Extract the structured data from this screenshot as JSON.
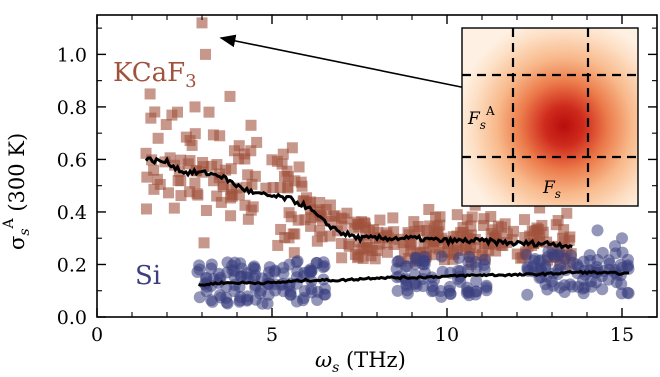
{
  "chart_data": {
    "type": "scatter",
    "xlabel": "ω_s (THz)",
    "xlabel_main": "ω",
    "xlabel_sub": "s",
    "xlabel_unit": " (THz)",
    "ylabel_main": "σ",
    "ylabel_sub": "s",
    "ylabel_sup": "A",
    "ylabel_unit": " (300 K)",
    "xlim": [
      0,
      16
    ],
    "ylim": [
      0.0,
      1.15
    ],
    "xticks": [
      0,
      5,
      10,
      15
    ],
    "xtick_labels": [
      "0",
      "5",
      "10",
      "15"
    ],
    "yticks": [
      0.0,
      0.2,
      0.4,
      0.6,
      0.8,
      1.0
    ],
    "ytick_labels": [
      "0.0",
      "0.2",
      "0.4",
      "0.6",
      "0.8",
      "1.0"
    ],
    "series": [
      {
        "name": "KCaF3",
        "label_main": "KCaF",
        "label_sub": "3",
        "marker": "square",
        "color": "#a0523c",
        "line_x": [
          1.4,
          2.0,
          2.5,
          3.0,
          3.5,
          4.0,
          4.5,
          5.0,
          5.5,
          6.0,
          6.5,
          7.0,
          7.5,
          8.0,
          9.0,
          10.0,
          11.0,
          12.0,
          13.0,
          13.6
        ],
        "line_y": [
          0.6,
          0.59,
          0.55,
          0.55,
          0.54,
          0.5,
          0.47,
          0.46,
          0.45,
          0.42,
          0.36,
          0.32,
          0.3,
          0.3,
          0.3,
          0.29,
          0.29,
          0.28,
          0.28,
          0.27
        ],
        "outlier": [
          3.0,
          1.12
        ]
      },
      {
        "name": "Si",
        "label_main": "Si",
        "marker": "circle",
        "color": "#3b3f80",
        "line_x": [
          2.9,
          3.5,
          4.0,
          5.0,
          6.0,
          7.0,
          8.0,
          9.0,
          10.0,
          11.0,
          12.0,
          13.0,
          13.5,
          14.0,
          15.2
        ],
        "line_y": [
          0.12,
          0.13,
          0.13,
          0.13,
          0.14,
          0.14,
          0.15,
          0.15,
          0.155,
          0.16,
          0.16,
          0.165,
          0.17,
          0.17,
          0.165
        ]
      }
    ],
    "inset": {
      "ylabel_main": "F",
      "ylabel_sub": "s",
      "ylabel_sup": "A",
      "xlabel_main": "F",
      "xlabel_sub": "s"
    },
    "grid": false
  },
  "colors": {
    "kcaf3": "#a0523c",
    "si": "#3b3f80",
    "line": "#000000"
  }
}
